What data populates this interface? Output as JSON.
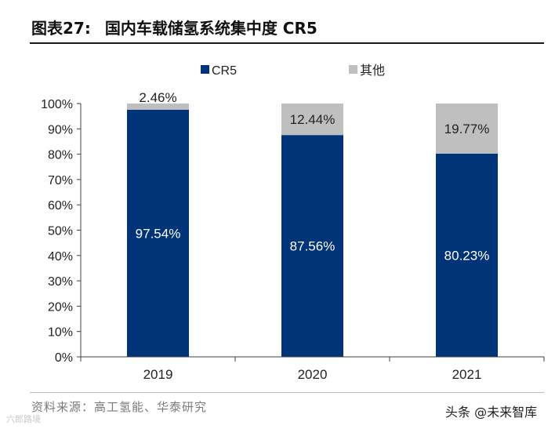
{
  "figure": {
    "number": "图表27:",
    "title": "国内车载储氢系统集中度 CR5"
  },
  "source_note": "资料来源：高工氢能、华泰研究",
  "watermarks": {
    "left": "六郎路境",
    "right": "头条 @未来智库"
  },
  "colors": {
    "cr5": "#003478",
    "other": "#bfbfbf",
    "axis": "#404040"
  },
  "chart_data": {
    "type": "bar",
    "stacked": true,
    "percent_stacked": true,
    "categories": [
      "2019",
      "2020",
      "2021"
    ],
    "series": [
      {
        "name": "CR5",
        "values": [
          97.54,
          87.56,
          80.23
        ],
        "labels": [
          "97.54%",
          "87.56%",
          "80.23%"
        ]
      },
      {
        "name": "其他",
        "values": [
          2.46,
          12.44,
          19.77
        ],
        "labels": [
          "2.46%",
          "12.44%",
          "19.77%"
        ]
      }
    ],
    "ylim": [
      0,
      100
    ],
    "yticks": [
      "0%",
      "10%",
      "20%",
      "30%",
      "40%",
      "50%",
      "60%",
      "70%",
      "80%",
      "90%",
      "100%"
    ],
    "legend_position": "top-center",
    "grid": false,
    "xlabel": "",
    "ylabel": ""
  }
}
